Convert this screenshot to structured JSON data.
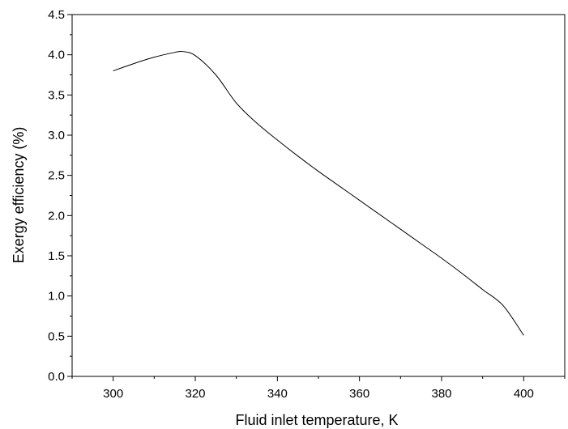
{
  "chart_data": {
    "type": "line",
    "title": "",
    "xlabel": "Fluid inlet temperature, K",
    "ylabel": "Exergy efficiency (%)",
    "xlim": [
      290,
      410
    ],
    "ylim": [
      0,
      4.5
    ],
    "x_ticks": [
      300,
      320,
      340,
      360,
      380,
      400
    ],
    "x_tick_labels": [
      "300",
      "320",
      "340",
      "360",
      "380",
      "400"
    ],
    "y_ticks": [
      0,
      0.5,
      1,
      1.5,
      2,
      2.5,
      3,
      3.5,
      4,
      4.5
    ],
    "y_tick_labels": [
      "0.0",
      "0.5",
      "1.0",
      "1.5",
      "2.0",
      "2.5",
      "3.0",
      "3.5",
      "4.0",
      "4.5"
    ],
    "grid": false,
    "legend": "none",
    "series": [
      {
        "color": "#000000",
        "x": [
          300,
          305,
          310,
          315,
          317,
          320,
          325,
          330,
          335,
          340,
          345,
          350,
          355,
          360,
          365,
          370,
          375,
          380,
          385,
          390,
          395,
          400
        ],
        "y": [
          3.8,
          3.89,
          3.97,
          4.03,
          4.04,
          3.99,
          3.75,
          3.4,
          3.15,
          2.94,
          2.74,
          2.55,
          2.37,
          2.19,
          2.01,
          1.83,
          1.65,
          1.47,
          1.28,
          1.08,
          0.88,
          0.51
        ]
      }
    ]
  }
}
